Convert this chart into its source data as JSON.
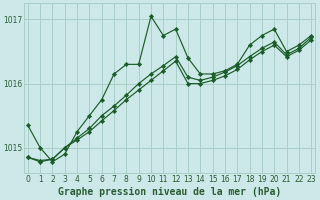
{
  "title": "Graphe pression niveau de la mer (hPa)",
  "background_color": "#cde8e8",
  "grid_color": "#a8cfc8",
  "line_color": "#1a5c28",
  "x_values": [
    0,
    1,
    2,
    3,
    4,
    5,
    6,
    7,
    8,
    9,
    10,
    11,
    12,
    13,
    14,
    15,
    16,
    17,
    18,
    19,
    20,
    21,
    22,
    23
  ],
  "series1": [
    1015.35,
    1015.0,
    1014.78,
    1014.9,
    1015.25,
    1015.5,
    1015.75,
    1016.15,
    1016.3,
    1016.3,
    1017.05,
    1016.75,
    1016.85,
    1016.4,
    1016.15,
    1016.15,
    1016.2,
    1016.3,
    1016.6,
    1016.75,
    1016.85,
    1016.5,
    1016.6,
    1016.75
  ],
  "series2": [
    1014.85,
    1014.8,
    1014.82,
    1015.0,
    1015.15,
    1015.3,
    1015.5,
    1015.65,
    1015.82,
    1016.0,
    1016.15,
    1016.28,
    1016.42,
    1016.1,
    1016.05,
    1016.1,
    1016.18,
    1016.28,
    1016.42,
    1016.55,
    1016.65,
    1016.45,
    1016.55,
    1016.72
  ],
  "series3": [
    1014.85,
    1014.78,
    1014.82,
    1015.0,
    1015.12,
    1015.25,
    1015.42,
    1015.58,
    1015.75,
    1015.9,
    1016.05,
    1016.2,
    1016.35,
    1016.0,
    1016.0,
    1016.05,
    1016.12,
    1016.22,
    1016.37,
    1016.5,
    1016.6,
    1016.42,
    1016.52,
    1016.68
  ],
  "ylim": [
    1014.6,
    1017.25
  ],
  "yticks": [
    1015,
    1016,
    1017
  ],
  "xlim": [
    -0.3,
    23.3
  ],
  "title_fontsize": 7,
  "tick_fontsize": 5.5,
  "axis_color": "#2a5c35"
}
